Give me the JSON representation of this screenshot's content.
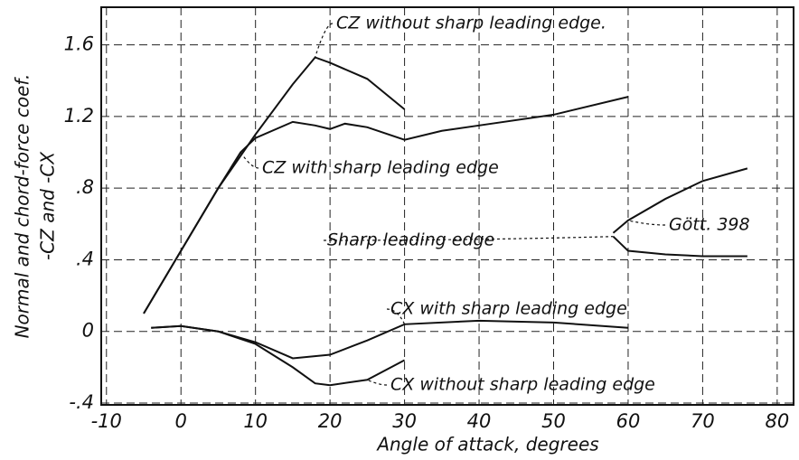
{
  "chart_data": {
    "type": "line",
    "x_label": "Angle of attack, degrees",
    "y_label": [
      "Normal and chord-force coef.",
      "-CZ and -CX"
    ],
    "xlim": [
      -10.7,
      82.2
    ],
    "xticks": [
      -10,
      0,
      10,
      20,
      30,
      40,
      50,
      60,
      70,
      80
    ],
    "ylim": [
      -0.41,
      1.81
    ],
    "yticks": [
      {
        "value": -0.4,
        "label": "-.4"
      },
      0,
      {
        "value": 0.4,
        "label": ".4"
      },
      {
        "value": 0.8,
        "label": ".8"
      },
      1.2,
      1.6
    ],
    "grid": true,
    "series": [
      {
        "name": "CZ without sharp leading edge.",
        "color": "#111111",
        "x": [
          -5,
          0,
          5,
          10,
          15,
          18,
          20,
          25,
          30
        ],
        "values": [
          0.1,
          0.45,
          0.8,
          1.1,
          1.38,
          1.53,
          1.5,
          1.41,
          1.24
        ]
      },
      {
        "name": "CZ with sharp leading edge",
        "color": "#111111",
        "x": [
          -5,
          0,
          5,
          8,
          10,
          15,
          18,
          20,
          22,
          25,
          30,
          35,
          40,
          50,
          60
        ],
        "values": [
          0.1,
          0.45,
          0.8,
          1.0,
          1.08,
          1.17,
          1.15,
          1.13,
          1.16,
          1.14,
          1.07,
          1.12,
          1.15,
          1.21,
          1.31
        ]
      },
      {
        "name": "Sharp leading edge",
        "color": "#111111",
        "x": [
          58,
          60,
          65,
          70,
          76
        ],
        "values": [
          0.53,
          0.45,
          0.43,
          0.42,
          0.42
        ]
      },
      {
        "name": "Gött. 398",
        "color": "#111111",
        "x": [
          58,
          60,
          65,
          70,
          76
        ],
        "values": [
          0.55,
          0.62,
          0.74,
          0.84,
          0.91
        ]
      },
      {
        "name": "CX with sharp leading edge",
        "color": "#111111",
        "x": [
          -4,
          0,
          5,
          10,
          15,
          20,
          25,
          30,
          40,
          50,
          60
        ],
        "values": [
          0.02,
          0.03,
          0.0,
          -0.06,
          -0.15,
          -0.13,
          -0.05,
          0.04,
          0.06,
          0.05,
          0.02
        ]
      },
      {
        "name": "CX without sharp leading edge",
        "color": "#111111",
        "x": [
          -4,
          0,
          5,
          10,
          15,
          18,
          20,
          25,
          30
        ],
        "values": [
          0.02,
          0.03,
          0.0,
          -0.07,
          -0.2,
          -0.29,
          -0.3,
          -0.27,
          -0.16
        ]
      }
    ]
  }
}
